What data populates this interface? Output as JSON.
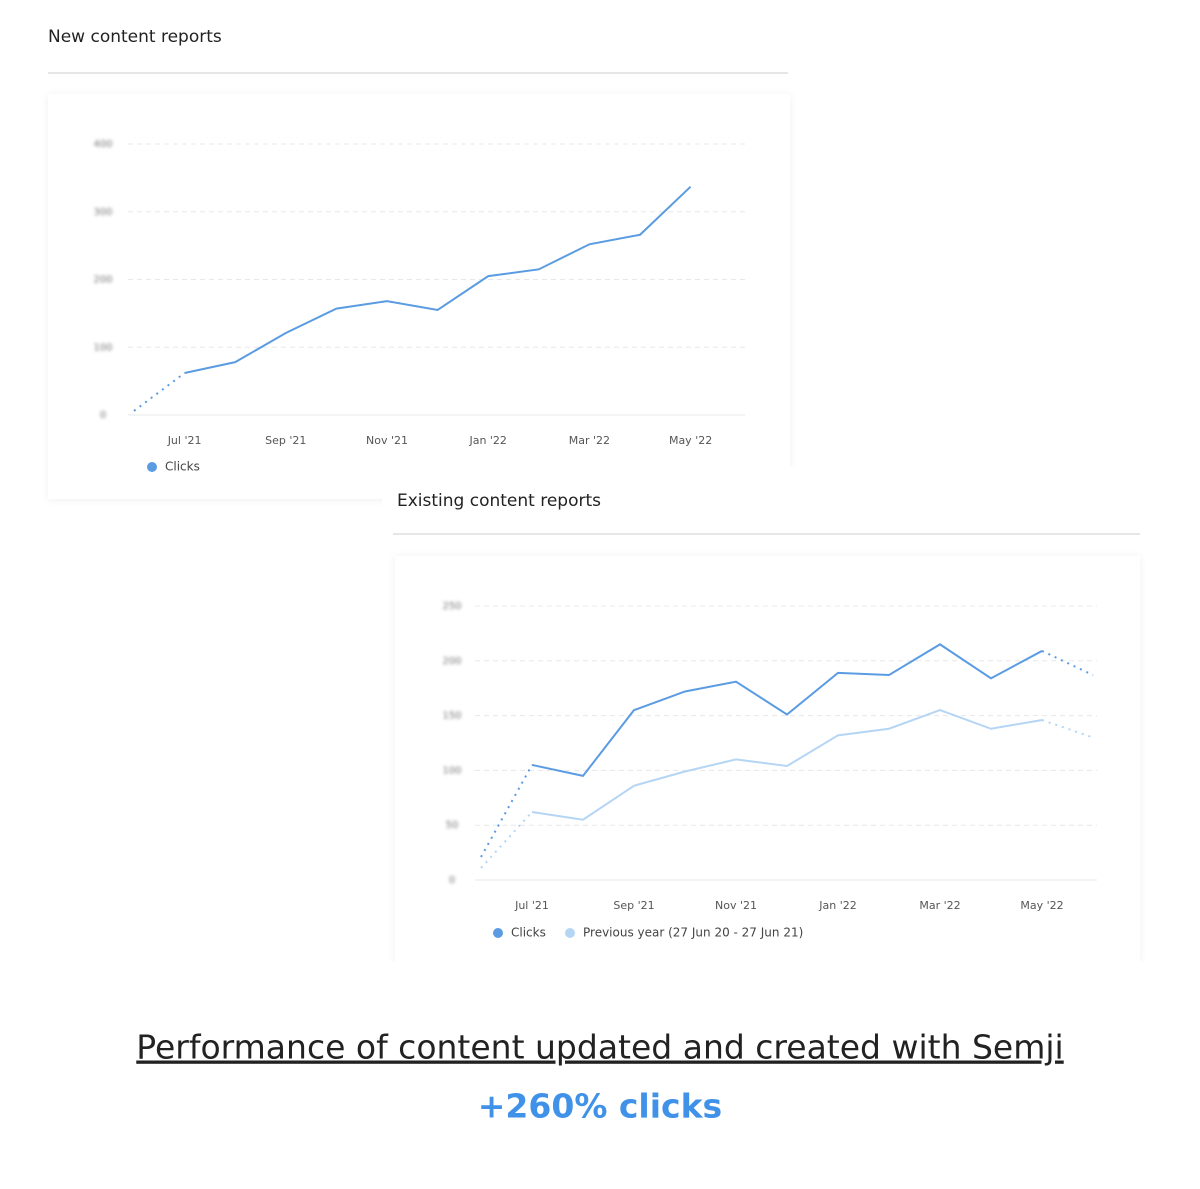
{
  "chart_data": [
    {
      "type": "line",
      "title": "New content reports",
      "categories": [
        null,
        "Jul '21",
        null,
        "Sep '21",
        null,
        "Nov '21",
        null,
        "Jan '22",
        null,
        "Mar '22",
        null,
        "May '22"
      ],
      "series": [
        {
          "name": "Clicks",
          "color": "#5a9be2",
          "values": [
            6,
            62,
            78,
            121,
            157,
            168,
            155,
            205,
            215,
            252,
            266,
            337
          ]
        }
      ],
      "ylim": [
        0,
        400
      ],
      "yticks": [
        0,
        100,
        200,
        300,
        400
      ],
      "grid": true
    },
    {
      "type": "line",
      "title": "Existing content reports",
      "categories": [
        null,
        "Jul '21",
        null,
        "Sep '21",
        null,
        "Nov '21",
        null,
        "Jan '22",
        null,
        "Mar '22",
        null,
        "May '22",
        null
      ],
      "series": [
        {
          "name": "Clicks",
          "color": "#5a9be2",
          "values": [
            21,
            105,
            95,
            155,
            172,
            181,
            151,
            189,
            187,
            215,
            184,
            209,
            187
          ]
        },
        {
          "name": "Previous year (27 Jun 20 - 27 Jun 21)",
          "color": "#b5d5f5",
          "values": [
            11,
            62,
            55,
            86,
            99,
            110,
            104,
            132,
            138,
            155,
            138,
            146,
            130
          ]
        }
      ],
      "ylim": [
        0,
        250
      ],
      "yticks": [
        0,
        50,
        100,
        150,
        200,
        250
      ],
      "grid": true
    }
  ],
  "caption": "Performance of content updated and created with Semji",
  "highlight": "+260% clicks"
}
